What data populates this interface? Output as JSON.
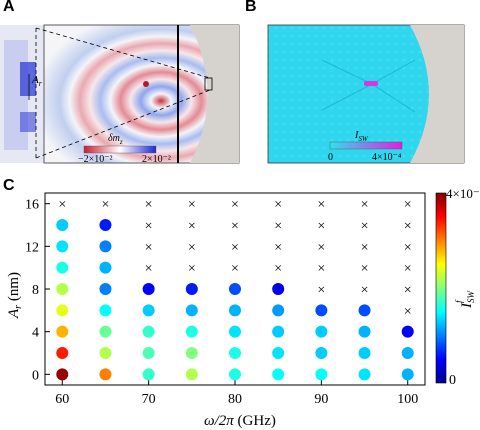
{
  "panels": {
    "a": {
      "label": "A",
      "colorbar_title": "δm",
      "colorbar_title_sub": "z",
      "colorbar_min": "−2×10⁻²",
      "colorbar_max": "2×10⁻²",
      "annotation": "A",
      "annotation_sub": "r"
    },
    "b": {
      "label": "B",
      "colorbar_title": "I",
      "colorbar_title_sub": "SW",
      "colorbar_min": "0",
      "colorbar_max": "4×10⁻⁴"
    },
    "c": {
      "label": "C"
    }
  },
  "chart_data": {
    "type": "scatter",
    "xlabel": "ω/2π (GHz)",
    "ylabel": "A_r (nm)",
    "x_ticks": [
      "60",
      "70",
      "80",
      "90",
      "100"
    ],
    "y_ticks": [
      "0",
      "4",
      "8",
      "12",
      "16"
    ],
    "xlim": [
      58,
      102
    ],
    "ylim": [
      -1,
      17
    ],
    "x_values": [
      60,
      65,
      70,
      75,
      80,
      85,
      90,
      95,
      100
    ],
    "y_values": [
      0,
      2,
      4,
      6,
      8,
      10,
      12,
      14,
      16
    ],
    "colorbar_label": "I^f_SW",
    "colorbar_min_label": "0",
    "colorbar_max_label": "4×10⁻⁴",
    "colorbar_range": [
      0,
      0.0004
    ],
    "marker_x_label": "×",
    "grid_values_1e4": [
      [
        3.9,
        3.0,
        1.7,
        2.2,
        1.6,
        1.5,
        1.5,
        1.4,
        1.2
      ],
      [
        3.4,
        2.2,
        1.8,
        2.0,
        1.6,
        1.4,
        1.3,
        1.3,
        1.2
      ],
      [
        2.8,
        1.9,
        1.7,
        1.6,
        1.4,
        1.3,
        1.3,
        1.2,
        0.5
      ],
      [
        2.4,
        1.5,
        1.3,
        1.2,
        1.2,
        1.1,
        0.8,
        0.8,
        -1
      ],
      [
        2.2,
        1.0,
        0.5,
        0.6,
        0.8,
        0.4,
        -1,
        -1,
        -1
      ],
      [
        1.6,
        1.2,
        -1,
        -1,
        -1,
        -1,
        -1,
        -1,
        -1
      ],
      [
        1.4,
        1.0,
        -1,
        -1,
        -1,
        -1,
        -1,
        -1,
        -1
      ],
      [
        1.3,
        0.6,
        -1,
        -1,
        -1,
        -1,
        -1,
        -1,
        -1
      ],
      [
        -1,
        -1,
        -1,
        -1,
        -1,
        -1,
        -1,
        -1,
        -1
      ]
    ]
  }
}
